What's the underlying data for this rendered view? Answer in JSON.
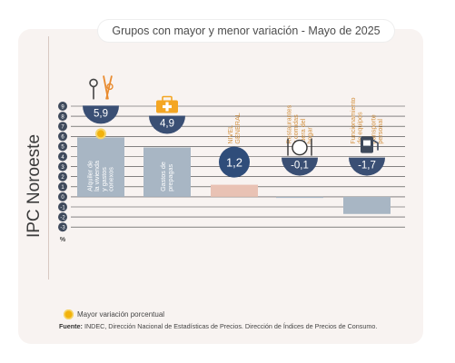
{
  "title": "Grupos con mayor y menor variación - Mayo de 2025",
  "side_title": "IPC Noroeste",
  "y_unit": "%",
  "legend": {
    "highlight_label": "Mayor variación porcentual",
    "highlight_color": "#f2b20c"
  },
  "source": {
    "label": "Fuente:",
    "text": "INDEC, Dirección Nacional de Estadísticas de Precios. Dirección de Índices de Precios de Consumo."
  },
  "colors": {
    "bar": "#a8b6c4",
    "general_bar": "#e9c2b4",
    "badge": "#3a4f74",
    "badge_general": "#2f4d7a",
    "grid": "#3c3c3c"
  },
  "chart_data": {
    "type": "bar",
    "title": "Grupos con mayor y menor variación - Mayo de 2025",
    "xlabel": "",
    "ylabel": "%",
    "ylim": [
      -3,
      9
    ],
    "yticks": [
      "9",
      "8",
      "7",
      "6",
      "5",
      "4",
      "3",
      "2",
      "1",
      "0",
      "-1",
      "-2",
      "-3"
    ],
    "grid": true,
    "categories": [
      "Alquiler de la vivienda y gastos conexos",
      "Gastos de prepagas",
      "NIVEL GENERAL",
      "Restaurantes y comidas fuera del hogar",
      "Funcionamiento de equipos de transporte personal"
    ],
    "values": [
      5.9,
      4.9,
      1.2,
      -0.1,
      -1.7
    ],
    "value_labels": [
      "5,9",
      "4,9",
      "1,2",
      "-0,1",
      "-1,7"
    ],
    "icons": [
      "keys-tools-icon",
      "first-aid-kit-icon",
      "",
      "plate-cutlery-icon",
      "fuel-can-icon"
    ],
    "highlight": [
      true,
      false,
      false,
      false,
      false
    ]
  }
}
